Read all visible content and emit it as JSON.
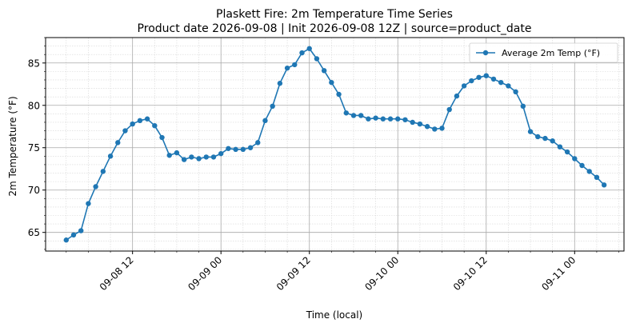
{
  "chart_data": {
    "type": "line",
    "title_line1": "Plaskett Fire: 2m Temperature Time Series",
    "title_line2": "Product date 2026-09-08 | Init 2026-09-08 12Z | source=product_date",
    "xlabel": "Time (local)",
    "ylabel": "2m Temperature (°F)",
    "x_ticks": [
      "09-08 12",
      "09-09 00",
      "09-09 12",
      "09-10 00",
      "09-10 12",
      "09-11 00"
    ],
    "x_tick_hours": [
      12,
      24,
      36,
      48,
      60,
      72
    ],
    "xlim_hours": [
      0.2,
      78.7
    ],
    "y_ticks": [
      65,
      70,
      75,
      80,
      85
    ],
    "ylim": [
      62.8,
      88.0
    ],
    "grid": true,
    "legend_position": "top-right",
    "series": [
      {
        "name": "Average 2m Temp (°F)",
        "color": "#1f77b4",
        "x_hours": [
          3,
          4,
          5,
          6,
          7,
          8,
          9,
          10,
          11,
          12,
          13,
          14,
          15,
          16,
          17,
          18,
          19,
          20,
          21,
          22,
          23,
          24,
          25,
          26,
          27,
          28,
          29,
          30,
          31,
          32,
          33,
          34,
          35,
          36,
          37,
          38,
          39,
          40,
          41,
          42,
          43,
          44,
          45,
          46,
          47,
          48,
          49,
          50,
          51,
          52,
          53,
          54,
          55,
          56,
          57,
          58,
          59,
          60,
          61,
          62,
          63,
          64,
          65,
          66,
          67,
          68,
          69,
          70,
          71,
          72,
          73,
          74,
          75,
          76
        ],
        "values": [
          64.1,
          64.7,
          65.2,
          68.4,
          70.4,
          72.2,
          74.0,
          75.6,
          77.0,
          77.8,
          78.2,
          78.4,
          77.6,
          76.2,
          74.1,
          74.4,
          73.6,
          73.9,
          73.7,
          73.9,
          73.9,
          74.3,
          74.9,
          74.8,
          74.8,
          75.0,
          75.6,
          78.2,
          79.9,
          82.6,
          84.4,
          84.8,
          86.2,
          86.7,
          85.5,
          84.1,
          82.7,
          81.3,
          79.1,
          78.8,
          78.8,
          78.4,
          78.5,
          78.4,
          78.4,
          78.4,
          78.3,
          78.0,
          77.8,
          77.5,
          77.2,
          77.3,
          79.5,
          81.1,
          82.3,
          82.9,
          83.3,
          83.5,
          83.1,
          82.7,
          82.3,
          81.6,
          79.9,
          76.9,
          76.3,
          76.1,
          75.8,
          75.1,
          74.5,
          73.7,
          72.9,
          72.2,
          71.5,
          70.6
        ]
      }
    ]
  }
}
